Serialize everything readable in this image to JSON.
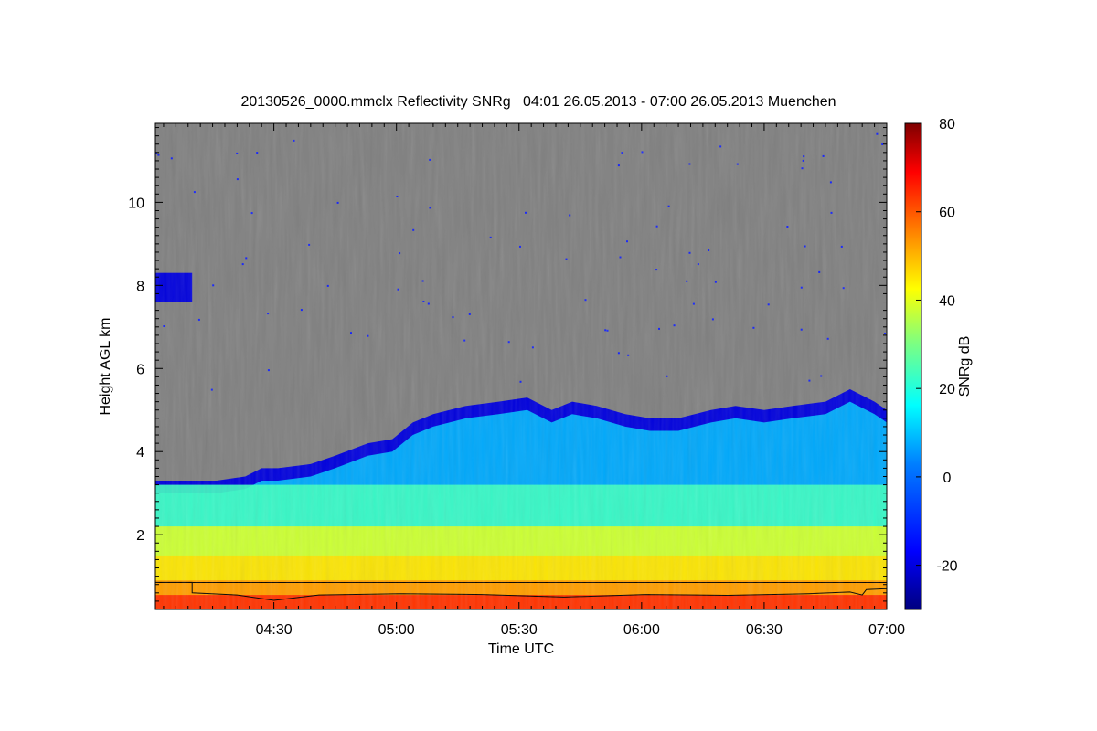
{
  "chart_data": {
    "type": "heatmap",
    "title": "20130526_0000.mmclx Reflectivity SNRg   04:01 26.05.2013 - 07:00 26.05.2013 Muenchen",
    "xlabel": "Time UTC",
    "ylabel": "Height AGL km",
    "x_range": [
      "04:01",
      "07:00"
    ],
    "x_ticks": [
      "04:30",
      "05:00",
      "05:30",
      "06:00",
      "06:30",
      "07:00"
    ],
    "x_ticks_minutes": [
      29,
      59,
      89,
      119,
      149,
      179
    ],
    "x_span_minutes": 179,
    "ylim": [
      0.2,
      11.9
    ],
    "y_ticks": [
      2,
      4,
      6,
      8,
      10
    ],
    "colorbar": {
      "label": "SNRg dB",
      "range": [
        -30,
        80
      ],
      "ticks": [
        -20,
        0,
        20,
        40,
        60,
        80
      ]
    },
    "background": "no-signal (grey)",
    "cloud_top_km": [
      [
        0,
        3.3
      ],
      [
        15,
        3.3
      ],
      [
        22,
        3.4
      ],
      [
        26,
        3.6
      ],
      [
        30,
        3.6
      ],
      [
        38,
        3.7
      ],
      [
        44,
        3.9
      ],
      [
        52,
        4.2
      ],
      [
        58,
        4.3
      ],
      [
        63,
        4.7
      ],
      [
        68,
        4.9
      ],
      [
        76,
        5.1
      ],
      [
        84,
        5.2
      ],
      [
        91,
        5.3
      ],
      [
        97,
        5.0
      ],
      [
        102,
        5.2
      ],
      [
        108,
        5.1
      ],
      [
        115,
        4.9
      ],
      [
        121,
        4.8
      ],
      [
        128,
        4.8
      ],
      [
        136,
        5.0
      ],
      [
        142,
        5.1
      ],
      [
        149,
        5.0
      ],
      [
        156,
        5.1
      ],
      [
        164,
        5.2
      ],
      [
        170,
        5.5
      ],
      [
        176,
        5.2
      ],
      [
        179,
        5.0
      ]
    ],
    "reflectivity_layers": [
      {
        "top_km": 3.2,
        "snr_db": 18
      },
      {
        "top_km": 2.2,
        "snr_db": 35
      },
      {
        "top_km": 1.5,
        "snr_db": 42
      },
      {
        "top_km": 0.9,
        "snr_db": 50
      },
      {
        "top_km": 0.55,
        "snr_db": 62
      }
    ],
    "upper_cloud": {
      "from_min": 0,
      "to_min": 9,
      "base_km": 7.6,
      "top_km": 8.3
    },
    "cloud_base_line_km": [
      [
        0,
        0.85
      ],
      [
        9,
        0.85
      ],
      [
        9,
        0.6
      ],
      [
        20,
        0.55
      ],
      [
        29,
        0.42
      ],
      [
        40,
        0.55
      ],
      [
        60,
        0.58
      ],
      [
        80,
        0.56
      ],
      [
        100,
        0.5
      ],
      [
        120,
        0.56
      ],
      [
        140,
        0.54
      ],
      [
        160,
        0.58
      ],
      [
        170,
        0.62
      ],
      [
        173,
        0.55
      ],
      [
        174,
        0.68
      ],
      [
        179,
        0.7
      ]
    ],
    "reference_line_km": 0.85
  },
  "colors": {
    "no_signal": "#808080",
    "colormap": [
      "#00007f",
      "#0000ff",
      "#007fff",
      "#00ffff",
      "#7fff7f",
      "#ffff00",
      "#ff7f00",
      "#ff0000",
      "#7f0000"
    ]
  }
}
